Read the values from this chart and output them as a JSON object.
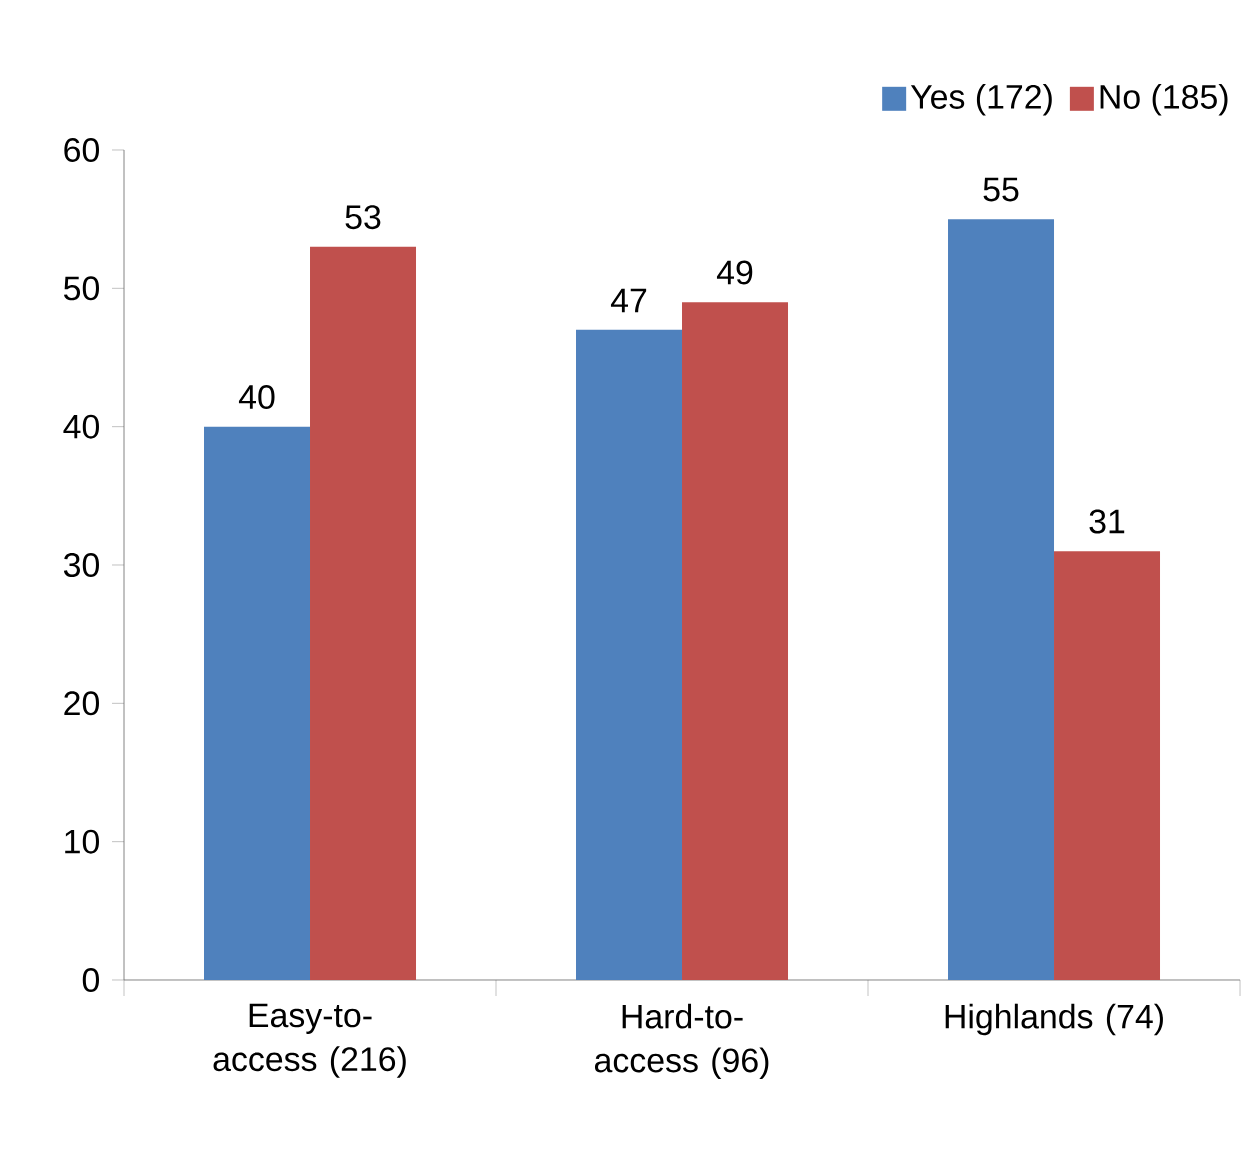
{
  "chart_data": {
    "type": "bar",
    "categories": [
      "Easy-to-access (216)",
      "Hard-to-access (96)",
      "Highlands (74)"
    ],
    "series": [
      {
        "name": "Yes (172)",
        "color": "#4f81bd",
        "values": [
          40,
          47,
          55
        ]
      },
      {
        "name": "No (185)",
        "color": "#c0504d",
        "values": [
          53,
          49,
          31
        ]
      }
    ],
    "ylim": [
      0,
      60
    ],
    "yticks": [
      0,
      10,
      20,
      30,
      40,
      50,
      60
    ],
    "data_labels": true,
    "grid": false,
    "legend": "top right"
  }
}
